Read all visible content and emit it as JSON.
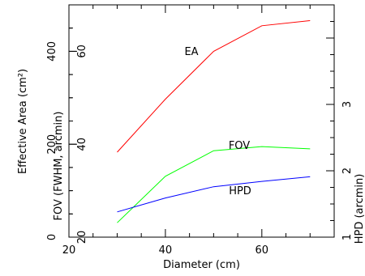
{
  "chart_data": {
    "type": "line",
    "xlabel": "Diameter (cm)",
    "xlim": [
      20,
      75
    ],
    "x_ticks": [
      "20",
      "40",
      "60"
    ],
    "axes": {
      "area": {
        "label": "Effective Area (cm²)",
        "range": [
          0,
          500
        ],
        "ticks": [
          "0",
          "200",
          "400"
        ]
      },
      "fov": {
        "label": "FOV (FWHM, arcmin)",
        "range": [
          20,
          70
        ],
        "ticks": [
          "20",
          "40",
          "60"
        ]
      },
      "hpd": {
        "label": "HPD (arcmin)",
        "range": [
          1,
          4.5
        ],
        "ticks": [
          "1",
          "2",
          "3"
        ]
      }
    },
    "series": [
      {
        "name": "EA",
        "axis": "area",
        "color": "#ff0000",
        "x": [
          30,
          40,
          50,
          60,
          70
        ],
        "values": [
          183,
          297,
          400,
          455,
          466
        ]
      },
      {
        "name": "FOV",
        "axis": "fov",
        "color": "#00ff00",
        "x": [
          30,
          40,
          50,
          60,
          70
        ],
        "values": [
          23.1,
          33.1,
          38.6,
          39.5,
          39.0
        ]
      },
      {
        "name": "HPD",
        "axis": "hpd",
        "color": "#0000ff",
        "x": [
          30,
          40,
          50,
          60,
          70
        ],
        "values": [
          1.38,
          1.59,
          1.76,
          1.84,
          1.91
        ]
      }
    ],
    "grid": false
  }
}
